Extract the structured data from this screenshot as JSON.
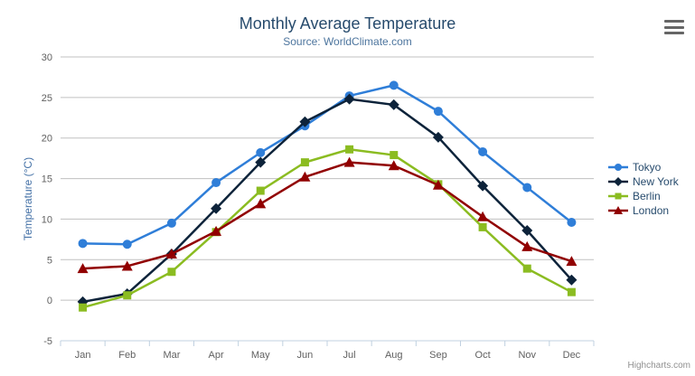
{
  "chart_data": {
    "type": "line",
    "title": "Monthly Average Temperature",
    "subtitle": "Source: WorldClimate.com",
    "categories": [
      "Jan",
      "Feb",
      "Mar",
      "Apr",
      "May",
      "Jun",
      "Jul",
      "Aug",
      "Sep",
      "Oct",
      "Nov",
      "Dec"
    ],
    "xlabel": "",
    "ylabel": "Temperature (°C)",
    "ylim": [
      -5,
      30
    ],
    "yticks": [
      -5,
      0,
      5,
      10,
      15,
      20,
      25,
      30
    ],
    "grid": true,
    "legend_position": "right",
    "series": [
      {
        "name": "Tokyo",
        "color": "#2f7ed8",
        "marker": "circle",
        "values": [
          7.0,
          6.9,
          9.5,
          14.5,
          18.2,
          21.5,
          25.2,
          26.5,
          23.3,
          18.3,
          13.9,
          9.6
        ]
      },
      {
        "name": "New York",
        "color": "#0d233a",
        "marker": "diamond",
        "values": [
          -0.2,
          0.8,
          5.7,
          11.3,
          17.0,
          22.0,
          24.8,
          24.1,
          20.1,
          14.1,
          8.6,
          2.5
        ]
      },
      {
        "name": "Berlin",
        "color": "#8bbc21",
        "marker": "square",
        "values": [
          -0.9,
          0.6,
          3.5,
          8.4,
          13.5,
          17.0,
          18.6,
          17.9,
          14.3,
          9.0,
          3.9,
          1.0
        ]
      },
      {
        "name": "London",
        "color": "#910000",
        "marker": "triangle",
        "values": [
          3.9,
          4.2,
          5.7,
          8.5,
          11.9,
          15.2,
          17.0,
          16.6,
          14.2,
          10.3,
          6.6,
          4.8
        ]
      }
    ]
  },
  "colors": {
    "title": "#274b6d",
    "subtitle": "#4d759e",
    "axis_label": "#606060",
    "y_axis_title": "#4572A7",
    "legend_text": "#274b6d",
    "grid_line": "#C0C0C0",
    "x_axis_line": "#C0D0E0",
    "credits": "#909090",
    "export_icon": "#666666",
    "background": "#FFFFFF"
  },
  "toolbar": {
    "export_icon": "hamburger-menu-icon"
  },
  "footer": {
    "credits": "Highcharts.com"
  }
}
